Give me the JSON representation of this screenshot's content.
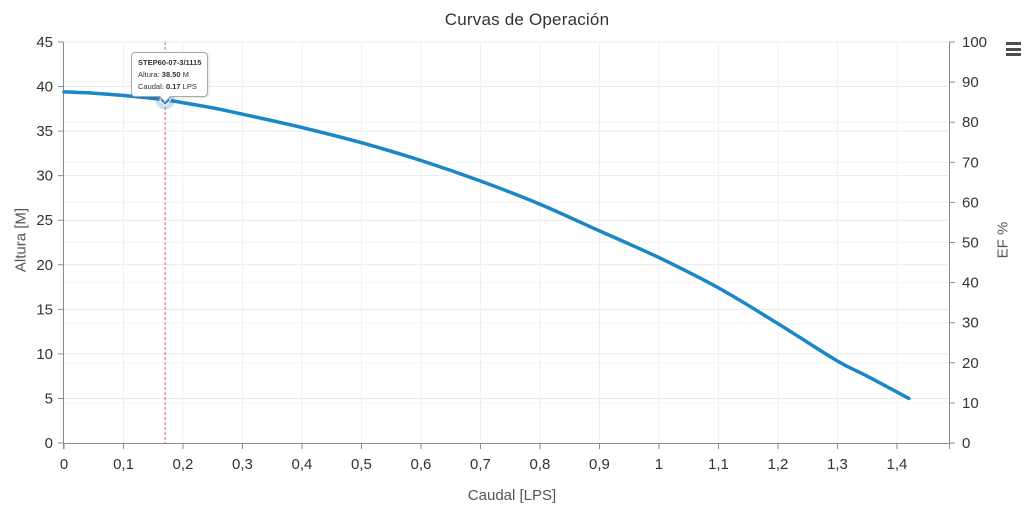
{
  "chart_data": {
    "type": "line",
    "title": "Curvas de Operación",
    "x_axis": {
      "label": "Caudal [LPS]",
      "min": 0,
      "max": 1.4875,
      "tick_values": [
        0,
        0.1,
        0.2,
        0.3,
        0.4,
        0.5,
        0.6,
        0.7,
        0.8,
        0.9,
        1,
        1.1,
        1.2,
        1.3,
        1.4
      ],
      "tick_labels": [
        "0",
        "0,1",
        "0,2",
        "0,3",
        "0,4",
        "0,5",
        "0,6",
        "0,7",
        "0,8",
        "0,9",
        "1",
        "1,1",
        "1,2",
        "1,3",
        "1,4"
      ]
    },
    "y_axis_left": {
      "label": "Altura [M]",
      "min": 0,
      "max": 45,
      "tick_values": [
        0,
        5,
        10,
        15,
        20,
        25,
        30,
        35,
        40,
        45
      ],
      "tick_labels": [
        "0",
        "5",
        "10",
        "15",
        "20",
        "25",
        "30",
        "35",
        "40",
        "45"
      ]
    },
    "y_axis_right": {
      "label": "EF %",
      "min": 0,
      "max": 100,
      "tick_values": [
        0,
        10,
        20,
        30,
        40,
        50,
        60,
        70,
        80,
        90,
        100
      ],
      "tick_labels": [
        "0",
        "10",
        "20",
        "30",
        "40",
        "50",
        "60",
        "70",
        "80",
        "90",
        "100"
      ]
    },
    "series": [
      {
        "name": "STEP60-07-3/1115",
        "color": "#1b86c8",
        "points": [
          [
            0,
            39.4
          ],
          [
            0.05,
            39.25
          ],
          [
            0.1,
            39.0
          ],
          [
            0.17,
            38.5
          ],
          [
            0.25,
            37.6
          ],
          [
            0.3,
            36.9
          ],
          [
            0.4,
            35.4
          ],
          [
            0.5,
            33.7
          ],
          [
            0.6,
            31.7
          ],
          [
            0.7,
            29.4
          ],
          [
            0.8,
            26.8
          ],
          [
            0.9,
            23.8
          ],
          [
            1.0,
            20.8
          ],
          [
            1.1,
            17.4
          ],
          [
            1.2,
            13.4
          ],
          [
            1.3,
            9.2
          ],
          [
            1.35,
            7.5
          ],
          [
            1.42,
            5.0
          ]
        ]
      }
    ],
    "highlight_point": {
      "x": 0.17,
      "y": 38.5
    },
    "tooltip": {
      "title": "STEP60-07-3/1115",
      "rows": [
        {
          "label": "Altura:",
          "value": "38.50",
          "unit": "M"
        },
        {
          "label": "Caudal:",
          "value": "0.17",
          "unit": "LPS"
        }
      ]
    },
    "colors": {
      "series": "#1b86c8",
      "crosshair": "#e05c5c",
      "grid_major": "#e9e9e9",
      "grid_minor": "#f5f5f5",
      "axis_line": "#8a8a8a",
      "tick_label": "#333333"
    },
    "layout": {
      "grid": true,
      "legend": "none"
    }
  }
}
